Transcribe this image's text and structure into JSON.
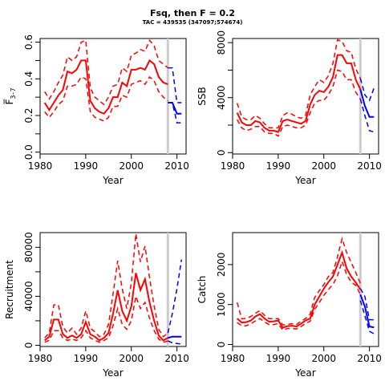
{
  "title": "Fsq, then F = 0.2",
  "subtitle": "TAC = 439535 (347097;574674)",
  "colors": {
    "history": "#ff0000",
    "projection": "#0000ff",
    "divider": "#cccccc"
  },
  "chart_data": [
    {
      "type": "line",
      "xlabel": "Year",
      "ylabel": "F̅ 3–7",
      "ylabel_main": "F̅",
      "ylabel_sub": "3–7",
      "xlim": [
        1980,
        2012
      ],
      "ylim": [
        -0.01,
        0.62
      ],
      "xticks": [
        1980,
        1990,
        2000,
        2010
      ],
      "yticks": [
        0.0,
        0.1,
        0.2,
        0.3,
        0.4,
        0.5,
        0.6
      ],
      "ytick_labels": [
        "0.0",
        "",
        "0.2",
        "",
        "0.4",
        "",
        "0.6"
      ],
      "divider_x": 2008,
      "series": [
        {
          "role": "history-median",
          "x": [
            1981,
            1982,
            1983,
            1984,
            1985,
            1986,
            1987,
            1988,
            1989,
            1990,
            1991,
            1992,
            1993,
            1994,
            1995,
            1996,
            1997,
            1998,
            1999,
            2000,
            2001,
            2002,
            2003,
            2004,
            2005,
            2006,
            2007,
            2008
          ],
          "y": [
            0.27,
            0.23,
            0.27,
            0.31,
            0.34,
            0.44,
            0.43,
            0.45,
            0.5,
            0.5,
            0.28,
            0.24,
            0.22,
            0.21,
            0.24,
            0.3,
            0.3,
            0.38,
            0.36,
            0.45,
            0.45,
            0.46,
            0.45,
            0.5,
            0.48,
            0.41,
            0.38,
            0.37
          ]
        },
        {
          "role": "history-upper",
          "x": [
            1981,
            1982,
            1983,
            1984,
            1985,
            1986,
            1987,
            1988,
            1989,
            1990,
            1991,
            1992,
            1993,
            1994,
            1995,
            1996,
            1997,
            1998,
            1999,
            2000,
            2001,
            2002,
            2003,
            2004,
            2005,
            2006,
            2007,
            2008
          ],
          "y": [
            0.33,
            0.29,
            0.33,
            0.38,
            0.42,
            0.52,
            0.5,
            0.52,
            0.6,
            0.61,
            0.35,
            0.3,
            0.28,
            0.26,
            0.3,
            0.36,
            0.37,
            0.46,
            0.44,
            0.53,
            0.54,
            0.56,
            0.55,
            0.61,
            0.58,
            0.5,
            0.48,
            0.46
          ]
        },
        {
          "role": "history-lower",
          "x": [
            1981,
            1982,
            1983,
            1984,
            1985,
            1986,
            1987,
            1988,
            1989,
            1990,
            1991,
            1992,
            1993,
            1994,
            1995,
            1996,
            1997,
            1998,
            1999,
            2000,
            2001,
            2002,
            2003,
            2004,
            2005,
            2006,
            2007,
            2008
          ],
          "y": [
            0.22,
            0.19,
            0.22,
            0.26,
            0.28,
            0.36,
            0.36,
            0.37,
            0.41,
            0.4,
            0.22,
            0.19,
            0.18,
            0.17,
            0.19,
            0.25,
            0.25,
            0.31,
            0.3,
            0.37,
            0.38,
            0.39,
            0.37,
            0.41,
            0.39,
            0.33,
            0.3,
            0.28
          ]
        },
        {
          "role": "projection-median",
          "x": [
            2008,
            2009,
            2010,
            2011
          ],
          "y": [
            0.27,
            0.27,
            0.21,
            0.21
          ]
        },
        {
          "role": "projection-upper",
          "x": [
            2008,
            2009,
            2010,
            2011
          ],
          "y": [
            0.46,
            0.46,
            0.27,
            0.27
          ]
        },
        {
          "role": "projection-lower",
          "x": [
            2008,
            2009,
            2010,
            2011
          ],
          "y": [
            0.27,
            0.27,
            0.16,
            0.16
          ]
        }
      ]
    },
    {
      "type": "line",
      "xlabel": "Year",
      "ylabel": "SSB",
      "xlim": [
        1980,
        2012
      ],
      "ylim": [
        -100,
        8300
      ],
      "xticks": [
        1980,
        1990,
        2000,
        2010
      ],
      "yticks": [
        0,
        2000,
        4000,
        6000,
        8000
      ],
      "ytick_labels": [
        "0",
        "",
        "4000",
        "",
        "8000"
      ],
      "divider_x": 2008,
      "series": [
        {
          "role": "history-median",
          "x": [
            1981,
            1982,
            1983,
            1984,
            1985,
            1986,
            1987,
            1988,
            1989,
            1990,
            1991,
            1992,
            1993,
            1994,
            1995,
            1996,
            1997,
            1998,
            1999,
            2000,
            2001,
            2002,
            2003,
            2004,
            2005,
            2006,
            2007,
            2008
          ],
          "y": [
            2900,
            2200,
            2000,
            2000,
            2300,
            2200,
            1800,
            1600,
            1600,
            1500,
            2300,
            2400,
            2300,
            2200,
            2100,
            2300,
            3500,
            4200,
            4500,
            4400,
            4800,
            5500,
            7100,
            7100,
            6500,
            6500,
            5300,
            4600
          ]
        },
        {
          "role": "history-upper",
          "x": [
            1981,
            1982,
            1983,
            1984,
            1985,
            1986,
            1987,
            1988,
            1989,
            1990,
            1991,
            1992,
            1993,
            1994,
            1995,
            1996,
            1997,
            1998,
            1999,
            2000,
            2001,
            2002,
            2003,
            2004,
            2005,
            2006,
            2007,
            2008
          ],
          "y": [
            3600,
            2600,
            2400,
            2400,
            2700,
            2500,
            2100,
            1800,
            1800,
            1800,
            2700,
            2900,
            2800,
            2600,
            2500,
            2700,
            4200,
            4800,
            5300,
            5100,
            5600,
            6500,
            8200,
            8100,
            7400,
            7300,
            6100,
            5400
          ]
        },
        {
          "role": "history-lower",
          "x": [
            1981,
            1982,
            1983,
            1984,
            1985,
            1986,
            1987,
            1988,
            1989,
            1990,
            1991,
            1992,
            1993,
            1994,
            1995,
            1996,
            1997,
            1998,
            1999,
            2000,
            2001,
            2002,
            2003,
            2004,
            2005,
            2006,
            2007,
            2008
          ],
          "y": [
            2400,
            1800,
            1600,
            1700,
            1900,
            1900,
            1500,
            1400,
            1400,
            1200,
            1900,
            2000,
            1900,
            1800,
            1800,
            2000,
            2900,
            3600,
            3800,
            3800,
            4200,
            4800,
            6000,
            5900,
            5300,
            5300,
            4400,
            3900
          ]
        },
        {
          "role": "projection-median",
          "x": [
            2008,
            2009,
            2010,
            2011
          ],
          "y": [
            4600,
            3400,
            2600,
            2600
          ]
        },
        {
          "role": "projection-upper",
          "x": [
            2008,
            2009,
            2010,
            2011
          ],
          "y": [
            5400,
            4200,
            3800,
            4700
          ]
        },
        {
          "role": "projection-lower",
          "x": [
            2008,
            2009,
            2010,
            2011
          ],
          "y": [
            3900,
            2700,
            1600,
            1500
          ]
        }
      ]
    },
    {
      "type": "line",
      "xlabel": "Year",
      "ylabel": "Recruitment",
      "xlim": [
        1980,
        2012
      ],
      "ylim": [
        -1000,
        92000
      ],
      "xticks": [
        1980,
        1990,
        2000,
        2010
      ],
      "yticks": [
        0,
        20000,
        40000,
        60000,
        80000
      ],
      "ytick_labels": [
        "0",
        "",
        "40000",
        "",
        "80000"
      ],
      "divider_x": 2008,
      "series": [
        {
          "role": "history-median",
          "x": [
            1981,
            1982,
            1983,
            1984,
            1985,
            1986,
            1987,
            1988,
            1989,
            1990,
            1991,
            1992,
            1993,
            1994,
            1995,
            1996,
            1997,
            1998,
            1999,
            2000,
            2001,
            2002,
            2003,
            2004,
            2005,
            2006,
            2007,
            2008
          ],
          "y": [
            4000,
            7000,
            21000,
            21000,
            9000,
            6000,
            8000,
            6000,
            9000,
            19000,
            9000,
            7000,
            4000,
            6000,
            10000,
            26000,
            45000,
            28000,
            20000,
            32000,
            59000,
            45000,
            54000,
            35000,
            20000,
            8000,
            4000,
            6000
          ]
        },
        {
          "role": "history-upper",
          "x": [
            1981,
            1982,
            1983,
            1984,
            1985,
            1986,
            1987,
            1988,
            1989,
            1990,
            1991,
            1992,
            1993,
            1994,
            1995,
            1996,
            1997,
            1998,
            1999,
            2000,
            2001,
            2002,
            2003,
            2004,
            2005,
            2006,
            2007,
            2008
          ],
          "y": [
            6000,
            10000,
            33000,
            33000,
            15000,
            10000,
            14000,
            9000,
            14000,
            28000,
            14000,
            11000,
            7000,
            9000,
            17000,
            42000,
            69000,
            46000,
            30000,
            51000,
            91000,
            68000,
            81000,
            55000,
            32000,
            13000,
            7000,
            10000
          ]
        },
        {
          "role": "history-lower",
          "x": [
            1981,
            1982,
            1983,
            1984,
            1985,
            1986,
            1987,
            1988,
            1989,
            1990,
            1991,
            1992,
            1993,
            1994,
            1995,
            1996,
            1997,
            1998,
            1999,
            2000,
            2001,
            2002,
            2003,
            2004,
            2005,
            2006,
            2007,
            2008
          ],
          "y": [
            2500,
            4000,
            12000,
            12000,
            6000,
            4000,
            5000,
            4000,
            6000,
            12000,
            6000,
            4000,
            2500,
            4000,
            6000,
            16000,
            30000,
            17000,
            13000,
            20000,
            40000,
            30000,
            35000,
            22000,
            12000,
            5000,
            2500,
            3500
          ]
        },
        {
          "role": "projection-median",
          "x": [
            2008,
            2009,
            2010,
            2011
          ],
          "y": [
            6000,
            7000,
            7000,
            7000
          ]
        },
        {
          "role": "projection-upper",
          "x": [
            2008,
            2009,
            2010,
            2011
          ],
          "y": [
            10000,
            26000,
            46000,
            70000
          ]
        },
        {
          "role": "projection-lower",
          "x": [
            2008,
            2009,
            2010,
            2011
          ],
          "y": [
            3500,
            2000,
            1500,
            1000
          ]
        }
      ]
    },
    {
      "type": "line",
      "xlabel": "Year",
      "ylabel": "Catch",
      "xlim": [
        1980,
        2012
      ],
      "ylim": [
        -50,
        2800
      ],
      "xticks": [
        1980,
        1990,
        2000,
        2010
      ],
      "yticks": [
        0,
        1000,
        2000
      ],
      "ytick_labels": [
        "0",
        "1000",
        "2000"
      ],
      "divider_x": 2008,
      "series": [
        {
          "role": "history-median",
          "x": [
            1981,
            1982,
            1983,
            1984,
            1985,
            1986,
            1987,
            1988,
            1989,
            1990,
            1991,
            1992,
            1993,
            1994,
            1995,
            1996,
            1997,
            1998,
            1999,
            2000,
            2001,
            2002,
            2003,
            2004,
            2005,
            2006,
            2007,
            2008
          ],
          "y": [
            650,
            550,
            560,
            600,
            700,
            760,
            650,
            570,
            580,
            600,
            420,
            460,
            470,
            450,
            520,
            600,
            650,
            1000,
            1200,
            1400,
            1560,
            1700,
            2000,
            2300,
            1900,
            1700,
            1550,
            1380
          ]
        },
        {
          "role": "history-upper",
          "x": [
            1981,
            1982,
            1983,
            1984,
            1985,
            1986,
            1987,
            1988,
            1989,
            1990,
            1991,
            1992,
            1993,
            1994,
            1995,
            1996,
            1997,
            1998,
            1999,
            2000,
            2001,
            2002,
            2003,
            2004,
            2005,
            2006,
            2007,
            2008
          ],
          "y": [
            1050,
            640,
            650,
            700,
            780,
            850,
            730,
            650,
            640,
            650,
            490,
            500,
            520,
            500,
            580,
            650,
            760,
            1180,
            1350,
            1500,
            1700,
            1800,
            2200,
            2650,
            2300,
            2050,
            1800,
            1530
          ]
        },
        {
          "role": "history-lower",
          "x": [
            1981,
            1982,
            1983,
            1984,
            1985,
            1986,
            1987,
            1988,
            1989,
            1990,
            1991,
            1992,
            1993,
            1994,
            1995,
            1996,
            1997,
            1998,
            1999,
            2000,
            2001,
            2002,
            2003,
            2004,
            2005,
            2006,
            2007,
            2008
          ],
          "y": [
            550,
            470,
            470,
            520,
            590,
            650,
            560,
            500,
            500,
            520,
            360,
            400,
            400,
            390,
            450,
            530,
            580,
            880,
            1050,
            1230,
            1380,
            1500,
            1720,
            2080,
            1750,
            1560,
            1480,
            1250
          ]
        },
        {
          "role": "projection-median",
          "x": [
            2008,
            2009,
            2010,
            2011
          ],
          "y": [
            1250,
            950,
            450,
            430
          ]
        },
        {
          "role": "projection-upper",
          "x": [
            2008,
            2009,
            2010,
            2011
          ],
          "y": [
            1400,
            1200,
            620,
            620
          ]
        },
        {
          "role": "projection-lower",
          "x": [
            2008,
            2009,
            2010,
            2011
          ],
          "y": [
            1100,
            720,
            330,
            270
          ]
        }
      ]
    }
  ]
}
